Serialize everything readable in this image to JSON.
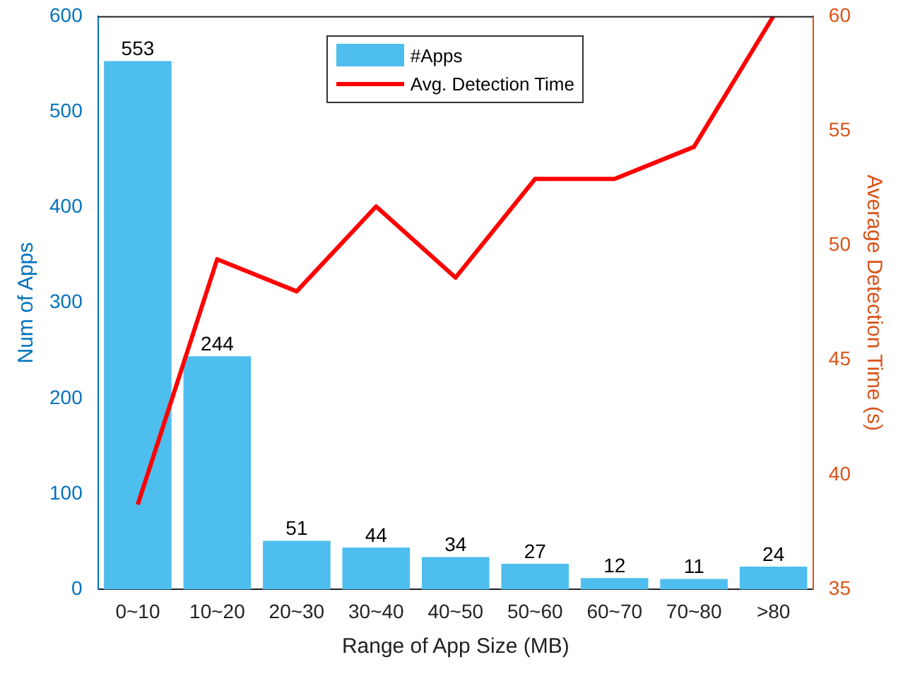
{
  "chart_data": {
    "type": "bar",
    "xlabel": "Range of App Size (MB)",
    "ylabel": "Num of Apps",
    "y2label": "Average Detection Time (s)",
    "categories": [
      "0~10",
      "10~20",
      "20~30",
      "30~40",
      "40~50",
      "50~60",
      "60~70",
      "70~80",
      ">80"
    ],
    "series": [
      {
        "name": "#Apps",
        "color": "#4dbeee",
        "values": [
          553,
          244,
          51,
          44,
          34,
          27,
          12,
          11,
          24
        ],
        "value_labels": [
          "553",
          "244",
          "51",
          "44",
          "34",
          "27",
          "12",
          "11",
          "24"
        ]
      },
      {
        "name": "Avg. Detection Time",
        "type": "line",
        "axis": "y2",
        "color": "#ff0000",
        "values": [
          38.7,
          49.4,
          48.0,
          51.7,
          48.6,
          52.9,
          52.9,
          54.3,
          60.0
        ]
      }
    ],
    "ylim": [
      0,
      600
    ],
    "yticks": [
      0,
      100,
      200,
      300,
      400,
      500,
      600
    ],
    "y2lim": [
      35,
      60
    ],
    "y2ticks": [
      35,
      40,
      45,
      50,
      55,
      60
    ],
    "legend": "top",
    "grid": false,
    "marker": "none",
    "line_style": "solid"
  }
}
